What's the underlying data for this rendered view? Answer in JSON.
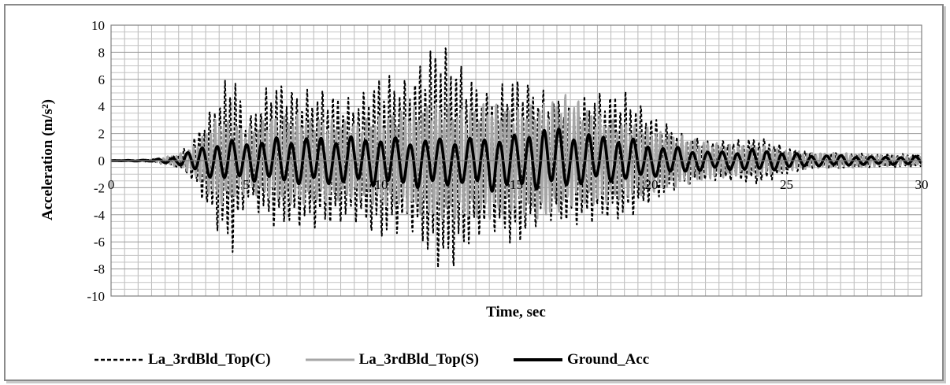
{
  "chart_data": {
    "type": "line",
    "xlabel": "Time, sec",
    "ylabel": "Acceleration (m/s²)",
    "xlim": [
      0,
      30
    ],
    "ylim": [
      -10,
      10
    ],
    "x_ticks": [
      "0",
      "5",
      "10",
      "15",
      "20",
      "25",
      "30"
    ],
    "y_ticks": [
      "10",
      "8",
      "6",
      "4",
      "2",
      "0",
      "-2",
      "-4",
      "-6",
      "-8",
      "-10"
    ],
    "grid": true,
    "legend_position": "bottom",
    "series": [
      {
        "name": "La_3rdBld_Top(C)",
        "style": "dashed",
        "color": "#000000",
        "envelope": {
          "t": [
            0,
            1.5,
            2.5,
            3,
            4,
            4.5,
            5,
            6,
            7,
            8,
            9,
            10,
            11,
            12,
            12.5,
            13,
            14,
            15,
            16,
            17,
            18,
            19,
            20,
            21,
            22,
            23,
            24,
            25,
            26,
            27,
            28,
            29,
            30
          ],
          "pos": [
            0,
            0.1,
            0.5,
            1.5,
            5,
            7.2,
            3,
            6.2,
            5.2,
            5.4,
            4.5,
            6.6,
            6,
            9,
            8.5,
            7,
            5,
            6.5,
            5.2,
            4.3,
            5.2,
            5.2,
            3.5,
            2.2,
            1.5,
            1.5,
            1.8,
            1,
            0.6,
            0.6,
            0.5,
            0.5,
            0.5
          ],
          "neg": [
            0,
            -0.1,
            -0.5,
            -1.5,
            -5.5,
            -7,
            -3,
            -5,
            -5,
            -5,
            -4.5,
            -6,
            -5,
            -8,
            -8.5,
            -7,
            -5,
            -6.7,
            -4.3,
            -5,
            -4.5,
            -4.5,
            -3.2,
            -2,
            -1.5,
            -1.5,
            -1.8,
            -1,
            -0.6,
            -0.6,
            -0.5,
            -0.5,
            -0.5
          ]
        }
      },
      {
        "name": "La_3rdBld_Top(S)",
        "style": "solid",
        "color": "#a6a6a6",
        "envelope": {
          "t": [
            0,
            1.5,
            2.5,
            3,
            4,
            4.5,
            5,
            6,
            7,
            8,
            9,
            10,
            11,
            12,
            13,
            14,
            15,
            16,
            17,
            18,
            19,
            20,
            21,
            22,
            23,
            24,
            25,
            26,
            27,
            28,
            29,
            30
          ],
          "pos": [
            0,
            0.1,
            0.5,
            1,
            3.5,
            3,
            2.5,
            3.5,
            3.5,
            3.2,
            3,
            3.5,
            4,
            4.5,
            4,
            4.5,
            4,
            4.5,
            5.2,
            3.5,
            3,
            2.5,
            2,
            1.5,
            1.2,
            1.2,
            0.8,
            0.6,
            0.6,
            0.5,
            0.4,
            0.4
          ],
          "neg": [
            0,
            -0.1,
            -0.5,
            -1,
            -3.5,
            -3,
            -2.5,
            -3,
            -3.5,
            -3.2,
            -3,
            -3.5,
            -4,
            -4.5,
            -4.5,
            -4.5,
            -4,
            -4.7,
            -3.5,
            -3.5,
            -3,
            -2.5,
            -2,
            -1.5,
            -1.2,
            -1.2,
            -0.8,
            -0.6,
            -0.6,
            -0.5,
            -0.4,
            -0.4
          ]
        }
      },
      {
        "name": "Ground_Acc",
        "style": "solid-thick",
        "color": "#000000",
        "envelope": {
          "t": [
            0,
            1.5,
            2.5,
            3,
            4,
            5,
            6,
            7,
            8,
            9,
            10,
            11,
            12,
            13,
            14,
            15,
            16,
            17,
            18,
            19,
            20,
            21,
            22,
            23,
            24,
            25,
            26,
            27,
            28,
            29,
            30
          ],
          "pos": [
            0,
            0.05,
            0.3,
            0.8,
            1.5,
            1.5,
            1.7,
            1.8,
            1.8,
            1.8,
            1.8,
            1.6,
            1.7,
            1.7,
            1.8,
            1.9,
            2.7,
            2.2,
            2.0,
            1.8,
            1.2,
            1.0,
            0.7,
            0.7,
            0.9,
            0.6,
            0.4,
            0.4,
            0.3,
            0.3,
            0.3
          ],
          "neg": [
            0,
            -0.05,
            -0.3,
            -0.8,
            -1.5,
            -1.5,
            -1.6,
            -1.8,
            -1.8,
            -1.8,
            -1.9,
            -2.0,
            -2.1,
            -1.8,
            -2.3,
            -2.2,
            -2.1,
            -2.0,
            -1.6,
            -1.6,
            -1.2,
            -1.0,
            -0.7,
            -0.7,
            -0.8,
            -0.6,
            -0.4,
            -0.4,
            -0.3,
            -0.3,
            -0.3
          ]
        }
      }
    ]
  }
}
